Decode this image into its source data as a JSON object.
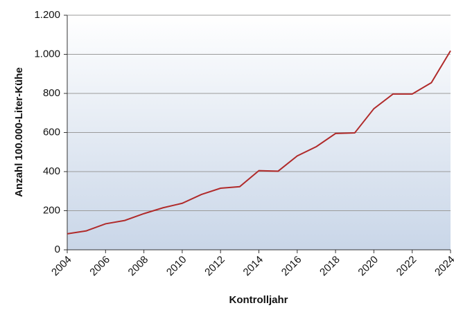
{
  "chart_data": {
    "type": "line",
    "x_label": "Kontrolljahr",
    "y_label": "Anzahl 100.000-Liter-Kühe",
    "x": [
      2004,
      2005,
      2006,
      2007,
      2008,
      2009,
      2010,
      2011,
      2012,
      2013,
      2014,
      2015,
      2016,
      2017,
      2018,
      2019,
      2020,
      2021,
      2022,
      2023,
      2024
    ],
    "series": [
      {
        "color": "#b02a2a",
        "values": [
          82,
          97,
          133,
          150,
          185,
          215,
          238,
          283,
          315,
          323,
          405,
          402,
          480,
          528,
          595,
          598,
          722,
          797,
          797,
          855,
          1018
        ]
      }
    ],
    "xlim": [
      2004,
      2024
    ],
    "xticks": [
      2004,
      2006,
      2008,
      2010,
      2012,
      2014,
      2016,
      2018,
      2020,
      2022,
      2024
    ],
    "ylim": [
      0,
      1200
    ],
    "yticks": [
      0,
      200,
      400,
      600,
      800,
      {
        "value": 1000,
        "label": "1.000"
      },
      {
        "value": 1200,
        "label": "1.200"
      }
    ],
    "grid": true
  }
}
